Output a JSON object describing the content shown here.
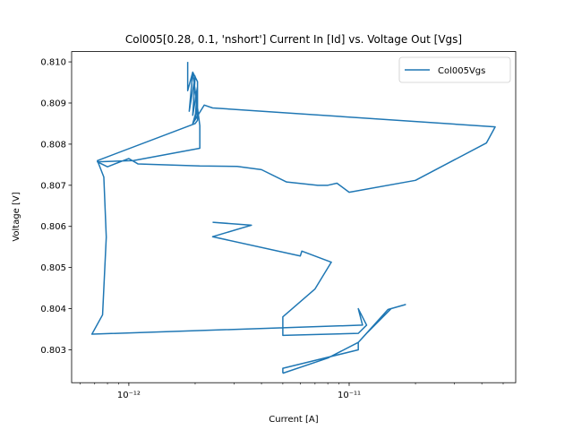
{
  "chart_data": {
    "type": "line",
    "title": "Col005[0.28, 0.1, 'nshort'] Current In [Id] vs. Voltage Out [Vgs]",
    "xlabel": "Current [A]",
    "ylabel": "Voltage [V]",
    "x_scale": "log",
    "xlim": [
      5.5e-13,
      5.7e-11
    ],
    "ylim": [
      0.8022,
      0.81025
    ],
    "x_major_ticks": [
      1e-12,
      1e-11
    ],
    "x_tick_labels": [
      "10⁻¹²",
      "10⁻¹¹"
    ],
    "y_ticks": [
      0.803,
      0.804,
      0.805,
      0.806,
      0.807,
      0.808,
      0.809,
      0.81
    ],
    "y_tick_labels": [
      "0.803",
      "0.804",
      "0.805",
      "0.806",
      "0.807",
      "0.808",
      "0.809",
      "0.810"
    ],
    "grid": false,
    "legend_position": "top-right",
    "line_color": "#1f77b4",
    "series": [
      {
        "name": "Col005Vgs",
        "x": [
          1.85e-12,
          1.85e-12,
          1.95e-12,
          1.88e-12,
          2e-12,
          1.95e-12,
          2.05e-12,
          2e-12,
          2.05e-12,
          1.95e-12,
          2.2e-12,
          2.4e-12,
          4.6e-11,
          4.2e-11,
          2e-11,
          1e-11,
          8.8e-12,
          8e-12,
          7.2e-12,
          5.2e-12,
          4e-12,
          3.1e-12,
          2.1e-12,
          1.1e-12,
          1e-12,
          8e-13,
          7.2e-13,
          1.05e-12,
          2.1e-12,
          2.1e-12,
          2.05e-12,
          1.95e-12,
          2.05e-12,
          2.05e-12,
          2e-12,
          7.2e-13,
          7.7e-13,
          7.9e-13,
          7.6e-13,
          6.8e-13,
          1.15e-11,
          1.1e-11,
          1.2e-11,
          1.1e-11,
          5e-12,
          5e-12,
          7e-12,
          8.3e-12,
          6.1e-12,
          6e-12,
          2.4e-12,
          3.6e-12,
          2.4e-12
        ]
      },
      {
        "name": "",
        "x": [
          5e-12,
          8e-12,
          1.1e-11,
          1.5e-11,
          1.8e-11,
          1.55e-11,
          1.2e-11,
          1.1e-11,
          1.1e-11,
          5e-12,
          5e-12
        ]
      }
    ],
    "y": {
      "0": [
        0.81,
        0.8093,
        0.80975,
        0.8088,
        0.80965,
        0.8087,
        0.8094,
        0.8086,
        0.8089,
        0.8085,
        0.80895,
        0.80888,
        0.80842,
        0.80803,
        0.80712,
        0.80683,
        0.80705,
        0.807,
        0.807,
        0.80708,
        0.80738,
        0.80746,
        0.80747,
        0.80752,
        0.80765,
        0.80745,
        0.80757,
        0.8076,
        0.8079,
        0.80845,
        0.80888,
        0.80975,
        0.80952,
        0.80858,
        0.8085,
        0.8076,
        0.8072,
        0.80574,
        0.80385,
        0.80338,
        0.8036,
        0.804,
        0.8036,
        0.8034,
        0.80335,
        0.8038,
        0.80448,
        0.80513,
        0.8054,
        0.80528,
        0.80575,
        0.80603,
        0.8061
      ],
      "1": [
        0.80243,
        0.8028,
        0.80318,
        0.80398,
        0.8041,
        0.804,
        0.8034,
        0.80318,
        0.803,
        0.80255,
        0.80243
      ]
    }
  }
}
